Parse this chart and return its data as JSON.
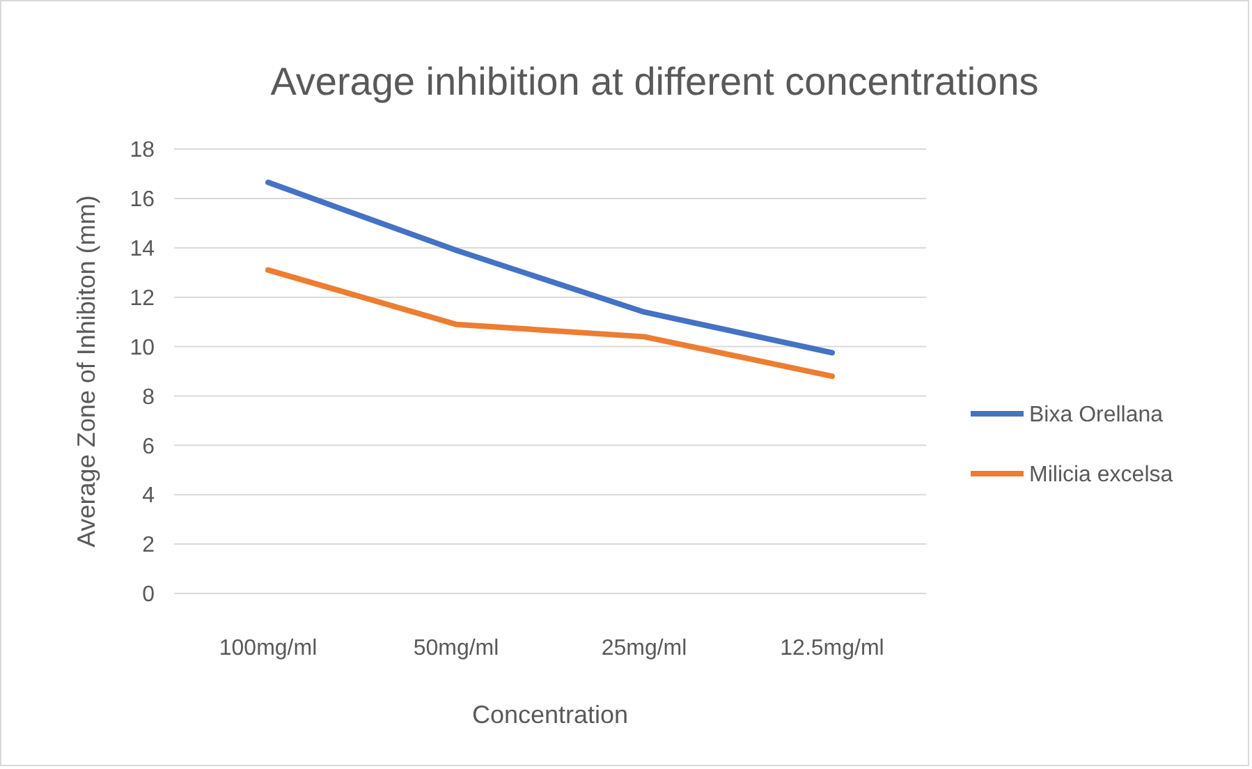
{
  "chart_data": {
    "type": "line",
    "title": "Average inhibition at different concentrations",
    "xlabel": "Concentration",
    "ylabel": "Average Zone of Inhibiton (mm)",
    "categories": [
      "100mg/ml",
      "50mg/ml",
      "25mg/ml",
      "12.5mg/ml"
    ],
    "series": [
      {
        "name": "Bixa Orellana",
        "color": "#4472c4",
        "values": [
          16.65,
          13.9,
          11.4,
          9.75
        ]
      },
      {
        "name": "Milicia excelsa",
        "color": "#ed7d31",
        "values": [
          13.1,
          10.9,
          10.4,
          8.8
        ]
      }
    ],
    "ylim": [
      0,
      18
    ],
    "yticks": [
      0,
      2,
      4,
      6,
      8,
      10,
      12,
      14,
      16,
      18
    ],
    "grid": "y",
    "legend": "right",
    "marker": "none",
    "line_style": "solid"
  }
}
